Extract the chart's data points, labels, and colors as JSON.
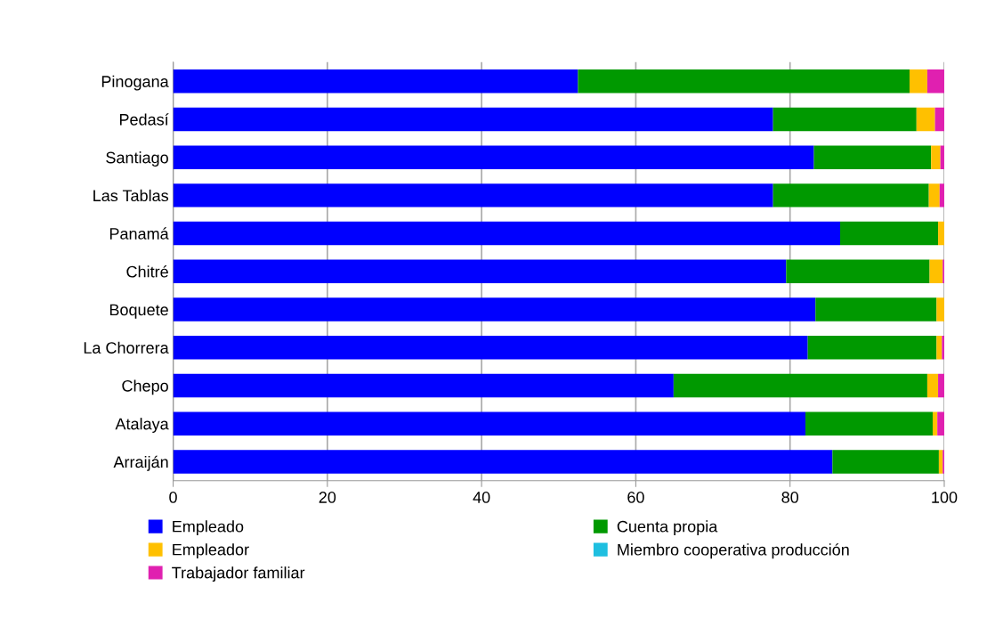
{
  "chart_data": {
    "type": "bar",
    "orientation": "horizontal",
    "stacked": true,
    "categories": [
      "Pinogana",
      "Pedasí",
      "Santiago",
      "Las Tablas",
      "Panamá",
      "Chitré",
      "Boquete",
      "La Chorrera",
      "Chepo",
      "Atalaya",
      "Arraiján"
    ],
    "series": [
      {
        "name": "Empleado",
        "color": "#0000ff",
        "values": [
          52.5,
          77.8,
          83.1,
          77.8,
          86.5,
          79.5,
          83.3,
          82.3,
          64.9,
          82.0,
          85.5
        ]
      },
      {
        "name": "Cuenta propia",
        "color": "#009900",
        "values": [
          43.0,
          18.6,
          15.2,
          20.2,
          12.7,
          18.6,
          15.7,
          16.7,
          32.9,
          16.5,
          13.8
        ]
      },
      {
        "name": "Empleador",
        "color": "#ffc000",
        "values": [
          2.3,
          2.4,
          1.2,
          1.4,
          0.8,
          1.7,
          1.0,
          0.7,
          1.4,
          0.6,
          0.5
        ]
      },
      {
        "name": "Miembro cooperativa producción",
        "color": "#1fbfe0",
        "values": [
          0,
          0,
          0,
          0,
          0,
          0,
          0,
          0,
          0,
          0,
          0
        ]
      },
      {
        "name": "Trabajador familiar",
        "color": "#e020b0",
        "values": [
          2.2,
          1.2,
          0.5,
          0.6,
          null,
          0.2,
          0,
          0.3,
          0.8,
          0.9,
          0.2
        ]
      }
    ],
    "xlim": [
      0,
      100
    ],
    "xticks": [
      0,
      20,
      40,
      60,
      80,
      100
    ],
    "grid": "x",
    "legend": "bottom"
  }
}
